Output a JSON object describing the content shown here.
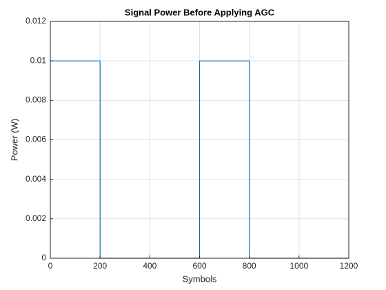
{
  "chart_data": {
    "type": "line",
    "title": "Signal Power Before Applying AGC",
    "x_label": "Symbols",
    "y_label": "Power (W)",
    "x": [
      0,
      200,
      200,
      600,
      600,
      800,
      800,
      1200
    ],
    "series": [
      {
        "color": "#0072bd",
        "values": [
          0.01,
          0.01,
          0,
          0,
          0.01,
          0.01,
          0,
          0
        ]
      }
    ],
    "xlim": [
      0,
      1200
    ],
    "xticks": [
      0,
      200,
      400,
      600,
      800,
      1000,
      1200
    ],
    "ylim": [
      0,
      0.012
    ],
    "yticks": [
      0,
      0.002,
      0.004,
      0.006,
      0.008,
      0.01,
      0.012
    ],
    "grid": true
  }
}
